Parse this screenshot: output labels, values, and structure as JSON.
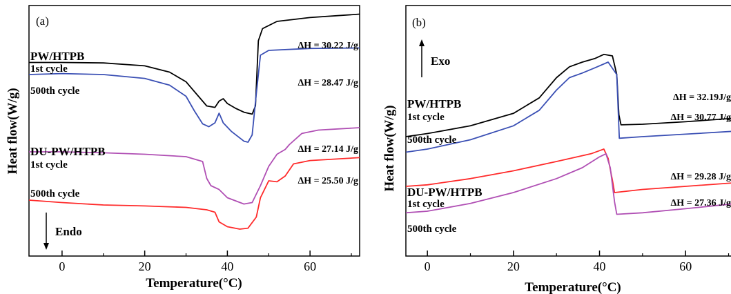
{
  "chart_data": [
    {
      "type": "line",
      "panel_label": "(a)",
      "xlabel": "Temperature(°C)",
      "ylabel": "Heat flow(W/g)",
      "xlim": [
        -8,
        72
      ],
      "xticks": [
        0,
        20,
        40,
        60
      ],
      "yticks": [],
      "direction_label": "Endo",
      "direction": "down",
      "group_labels": [
        "PW/HTPB",
        "DU-PW/HTPB"
      ],
      "series": [
        {
          "label": "1st cycle",
          "color": "#000000",
          "annotation": "ΔH = 30.22 J/g",
          "points": [
            [
              -8,
              1.85
            ],
            [
              0,
              1.85
            ],
            [
              10,
              1.84
            ],
            [
              20,
              1.78
            ],
            [
              26,
              1.65
            ],
            [
              30,
              1.45
            ],
            [
              33,
              1.15
            ],
            [
              35,
              0.95
            ],
            [
              37,
              0.92
            ],
            [
              38,
              1.05
            ],
            [
              39,
              1.1
            ],
            [
              40,
              1.0
            ],
            [
              42,
              0.9
            ],
            [
              44,
              0.82
            ],
            [
              46,
              0.78
            ],
            [
              46.8,
              0.95
            ],
            [
              47.5,
              2.3
            ],
            [
              48.5,
              2.55
            ],
            [
              52,
              2.7
            ],
            [
              60,
              2.78
            ],
            [
              72,
              2.85
            ]
          ]
        },
        {
          "label": "500th cycle",
          "color": "#3a4fb4",
          "annotation": "ΔH = 28.47 J/g",
          "points": [
            [
              -8,
              1.6
            ],
            [
              0,
              1.62
            ],
            [
              10,
              1.6
            ],
            [
              20,
              1.52
            ],
            [
              26,
              1.38
            ],
            [
              30,
              1.15
            ],
            [
              32,
              0.85
            ],
            [
              34,
              0.58
            ],
            [
              35.5,
              0.52
            ],
            [
              37,
              0.6
            ],
            [
              38,
              0.8
            ],
            [
              39,
              0.6
            ],
            [
              41,
              0.42
            ],
            [
              44,
              0.22
            ],
            [
              45,
              0.2
            ],
            [
              46,
              0.35
            ],
            [
              47,
              1.2
            ],
            [
              48,
              2.0
            ],
            [
              50,
              2.1
            ],
            [
              60,
              2.14
            ],
            [
              72,
              2.15
            ]
          ]
        },
        {
          "label": "1st cycle",
          "color": "#b04fb4",
          "annotation": "ΔH = 27.14 J/g",
          "points": [
            [
              -8,
              0.0
            ],
            [
              0,
              0.0
            ],
            [
              10,
              -0.02
            ],
            [
              20,
              -0.05
            ],
            [
              30,
              -0.1
            ],
            [
              34,
              -0.2
            ],
            [
              35,
              -0.55
            ],
            [
              36,
              -0.7
            ],
            [
              38,
              -0.78
            ],
            [
              40,
              -0.95
            ],
            [
              44,
              -1.08
            ],
            [
              46,
              -1.05
            ],
            [
              48,
              -0.7
            ],
            [
              50,
              -0.3
            ],
            [
              52,
              -0.05
            ],
            [
              54,
              0.05
            ],
            [
              55,
              0.15
            ],
            [
              58,
              0.38
            ],
            [
              62,
              0.45
            ],
            [
              72,
              0.5
            ]
          ]
        },
        {
          "label": "500th cycle",
          "color": "#ff2a2a",
          "annotation": "ΔH = 25.50 J/g",
          "points": [
            [
              -8,
              -1.0
            ],
            [
              0,
              -1.05
            ],
            [
              10,
              -1.1
            ],
            [
              20,
              -1.12
            ],
            [
              30,
              -1.15
            ],
            [
              35,
              -1.2
            ],
            [
              37,
              -1.25
            ],
            [
              38,
              -1.45
            ],
            [
              40,
              -1.55
            ],
            [
              43,
              -1.6
            ],
            [
              45,
              -1.58
            ],
            [
              47,
              -1.35
            ],
            [
              48,
              -0.95
            ],
            [
              50,
              -0.6
            ],
            [
              52,
              -0.62
            ],
            [
              54,
              -0.5
            ],
            [
              56,
              -0.25
            ],
            [
              60,
              -0.18
            ],
            [
              72,
              -0.12
            ]
          ]
        }
      ]
    },
    {
      "type": "line",
      "panel_label": "(b)",
      "xlabel": "Temperature(°C)",
      "ylabel": "Heat flow(W/g)",
      "xlim": [
        -5,
        72
      ],
      "xticks": [
        0,
        20,
        40,
        60
      ],
      "yticks": [],
      "direction_label": "Exo",
      "direction": "up",
      "group_labels": [
        "PW/HTPB",
        "DU-PW/HTPB"
      ],
      "series": [
        {
          "label": "1st cycle",
          "color": "#000000",
          "annotation": "ΔH = 32.19J/g",
          "points": [
            [
              -5,
              1.6
            ],
            [
              0,
              1.7
            ],
            [
              10,
              1.95
            ],
            [
              20,
              2.35
            ],
            [
              26,
              2.85
            ],
            [
              30,
              3.5
            ],
            [
              33,
              3.85
            ],
            [
              36,
              4.0
            ],
            [
              39,
              4.12
            ],
            [
              41,
              4.25
            ],
            [
              43,
              4.2
            ],
            [
              44,
              3.6
            ],
            [
              44.5,
              2.3
            ],
            [
              45,
              1.98
            ],
            [
              50,
              2.0
            ],
            [
              60,
              2.08
            ],
            [
              72,
              2.2
            ]
          ]
        },
        {
          "label": "500th cycle",
          "color": "#3a4fb4",
          "annotation": "ΔH = 30.77 J/g",
          "points": [
            [
              -5,
              1.1
            ],
            [
              0,
              1.2
            ],
            [
              10,
              1.5
            ],
            [
              20,
              1.95
            ],
            [
              26,
              2.45
            ],
            [
              30,
              3.1
            ],
            [
              33,
              3.5
            ],
            [
              36,
              3.65
            ],
            [
              39,
              3.82
            ],
            [
              42,
              4.0
            ],
            [
              44,
              3.6
            ],
            [
              44.6,
              1.55
            ],
            [
              50,
              1.6
            ],
            [
              60,
              1.68
            ],
            [
              72,
              1.78
            ]
          ]
        },
        {
          "label": "1st cycle",
          "color": "#ff2a2a",
          "annotation": "ΔH = 29.28 J/g",
          "points": [
            [
              -5,
              0.0
            ],
            [
              0,
              0.05
            ],
            [
              10,
              0.25
            ],
            [
              20,
              0.5
            ],
            [
              30,
              0.8
            ],
            [
              38,
              1.05
            ],
            [
              40,
              1.15
            ],
            [
              41,
              1.2
            ],
            [
              42,
              0.9
            ],
            [
              43,
              0.2
            ],
            [
              43.5,
              -0.2
            ],
            [
              50,
              -0.1
            ],
            [
              60,
              0.0
            ],
            [
              72,
              0.12
            ]
          ]
        },
        {
          "label": "500th cycle",
          "color": "#b04fb4",
          "annotation": "ΔH = 27.36 J/g",
          "points": [
            [
              -5,
              -0.85
            ],
            [
              0,
              -0.8
            ],
            [
              10,
              -0.55
            ],
            [
              20,
              -0.2
            ],
            [
              30,
              0.25
            ],
            [
              36,
              0.6
            ],
            [
              40,
              0.95
            ],
            [
              41.5,
              1.05
            ],
            [
              42.5,
              0.6
            ],
            [
              43.5,
              -0.5
            ],
            [
              44,
              -0.9
            ],
            [
              50,
              -0.85
            ],
            [
              60,
              -0.72
            ],
            [
              72,
              -0.55
            ]
          ]
        }
      ]
    }
  ]
}
